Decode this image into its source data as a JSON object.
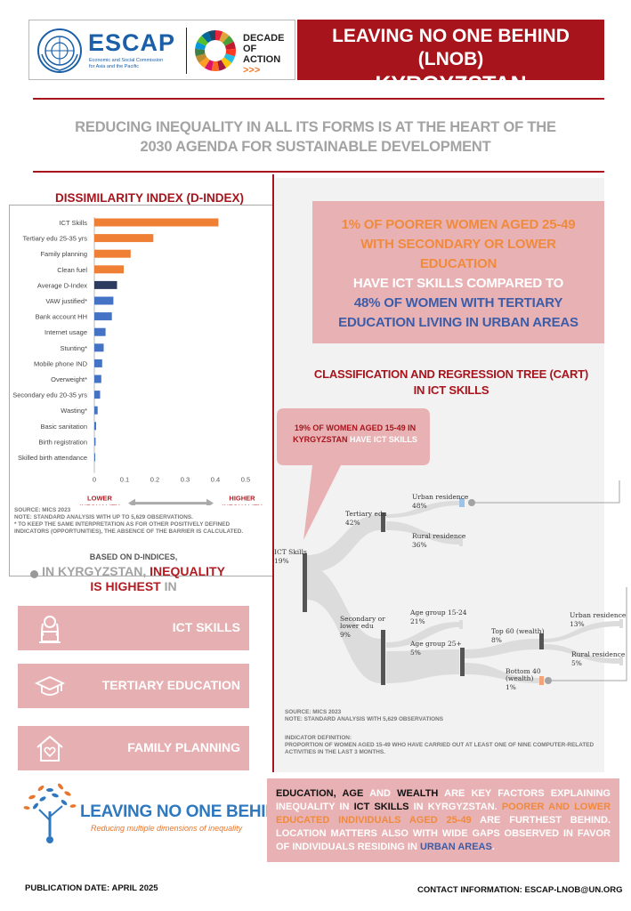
{
  "header": {
    "escap_word": "ESCAP",
    "escap_sub_1": "Economic and Social Commission",
    "escap_sub_2": "for Asia and the Pacific",
    "decade_1": "DECADE",
    "decade_2": "OF",
    "decade_3": "ACTION",
    "decade_arrows": ">>>",
    "title_line1": "LEAVING NO ONE BEHIND (LNOB)",
    "title_line2": "KYRGYZSTAN"
  },
  "tagline": {
    "line1": "REDUCING INEQUALITY IN ALL ITS FORMS IS AT THE HEART OF THE",
    "line2": "2030 AGENDA FOR SUSTAINABLE DEVELOPMENT"
  },
  "chart_data": {
    "type": "bar",
    "orientation": "horizontal",
    "title": "DISSIMILARITY INDEX (D-INDEX)",
    "categories": [
      "ICT Skills",
      "Tertiary edu 25-35 yrs",
      "Family planning",
      "Clean fuel",
      "Average D-Index",
      "VAW justified*",
      "Bank account HH",
      "Internet usage",
      "Stunting*",
      "Mobile phone IND",
      "Overweight*",
      "Secondary edu 20-35 yrs",
      "Wasting*",
      "Basic sanitation",
      "Birth registration",
      "Skilled birth attendance"
    ],
    "values": [
      0.41,
      0.195,
      0.12,
      0.097,
      0.075,
      0.063,
      0.058,
      0.037,
      0.031,
      0.026,
      0.023,
      0.019,
      0.011,
      0.006,
      0.004,
      0.001
    ],
    "colors": [
      "#ef7f35",
      "#ef7f35",
      "#ef7f35",
      "#ef7f35",
      "#2d3c5e",
      "#4472c4",
      "#4472c4",
      "#4472c4",
      "#4472c4",
      "#4472c4",
      "#4472c4",
      "#4472c4",
      "#4472c4",
      "#4472c4",
      "#4472c4",
      "#4472c4"
    ],
    "xlim": [
      0,
      0.5
    ],
    "xticks": [
      "0",
      "0.1",
      "0.2",
      "0.3",
      "0.4",
      "0.5"
    ],
    "lower_label_1": "LOWER",
    "lower_label_2": "INEQUALITY",
    "higher_label_1": "HIGHER",
    "higher_label_2": "INEQUALITY"
  },
  "chart_notes": {
    "source": "SOURCE: MICS 2023",
    "note1": "NOTE: STANDARD ANALYSIS WITH UP TO 5,629 OBSERVATIONS.",
    "note2": "* TO KEEP THE SAME INTERPRETATION AS FOR OTHER POSITIVELY DEFINED",
    "note3": "INDICATORS (OPPORTUNITIES), THE ABSENCE OF THE BARRIER IS CALCULATED."
  },
  "summary": {
    "line1": "BASED ON D-INDICES,",
    "in_country": "IN KYRGYZSTAN,",
    "inequality": "INEQUALITY",
    "is_highest": "IS HIGHEST",
    "in": "IN"
  },
  "barriers": [
    "ICT SKILLS",
    "TERTIARY EDUCATION",
    "FAMILY PLANNING"
  ],
  "headline": {
    "orange1": "1% OF POORER WOMEN AGED 25-49",
    "orange2": "WITH SECONDARY OR LOWER",
    "orange3": "EDUCATION",
    "white1": "HAVE ICT SKILLS COMPARED TO",
    "blue1": "48% OF WOMEN WITH TERTIARY",
    "blue2": "EDUCATION LIVING IN URBAN AREAS"
  },
  "cart": {
    "title1": "CLASSIFICATION AND REGRESSION TREE (CART)",
    "title2": "IN ICT SKILLS",
    "bubble_line1": "19% OF WOMEN AGED 15-49 IN",
    "bubble_red": "KYRGYZSTAN",
    "bubble_white": "HAVE ICT SKILLS",
    "nodes": {
      "root_label": "ICT Skills",
      "root_value": "19%",
      "tertiary_label": "Tertiary edu",
      "tertiary_value": "42%",
      "urban1_label": "Urban residence",
      "urban1_value": "48%",
      "rural1_label": "Rural residence",
      "rural1_value": "36%",
      "secondary_label1": "Secondary or",
      "secondary_label2": "lower edu",
      "secondary_value": "9%",
      "age1524_label": "Age group 15-24",
      "age1524_value": "21%",
      "age25_label": "Age group 25+",
      "age25_value": "5%",
      "top60_label": "Top 60 (wealth)",
      "top60_value": "8%",
      "urban2_label": "Urban residence",
      "urban2_value": "13%",
      "rural2_label": "Rural residence",
      "rural2_value": "5%",
      "bottom40_label1": "Bottom 40",
      "bottom40_label2": "(wealth)",
      "bottom40_value": "1%"
    },
    "source": "SOURCE: MICS 2023",
    "note": "NOTE: STANDARD ANALYSIS WITH 5,629 OBSERVATIONS",
    "def_title": "INDICATOR DEFINITION:",
    "def1": "PROPORTION OF WOMEN AGED 15-49 WHO HAVE CARRIED OUT AT LEAST ONE OF NINE COMPUTER-RELATED",
    "def2": "ACTIVITIES IN THE LAST 3 MONTHS."
  },
  "lnob_logo": {
    "title": "LEAVING NO ONE BEHIND",
    "subtitle": "Reducing multiple dimensions of inequality"
  },
  "conclusion": {
    "education": "EDUCATION,",
    "age": "AGE",
    "and": "AND",
    "wealth": "WEALTH",
    "t1": "ARE KEY FACTORS EXPLAINING INEQUALITY IN",
    "ict": "ICT SKILLS",
    "t2": "IN KYRGYZSTAN.",
    "o1": "POORER AND LOWER EDUCATED INDIVIDUALS AGED 25-49",
    "t3": "ARE FURTHEST BEHIND. LOCATION MATTERS ALSO WITH WIDE GAPS OBSERVED IN FAVOR OF INDIVIDUALS RESIDING IN",
    "urban": "URBAN AREAS",
    "dot": "."
  },
  "footer": {
    "pub_date": "PUBLICATION DATE: APRIL 2025",
    "contact": "CONTACT INFORMATION: ESCAP-LNOB@UN.ORG"
  }
}
